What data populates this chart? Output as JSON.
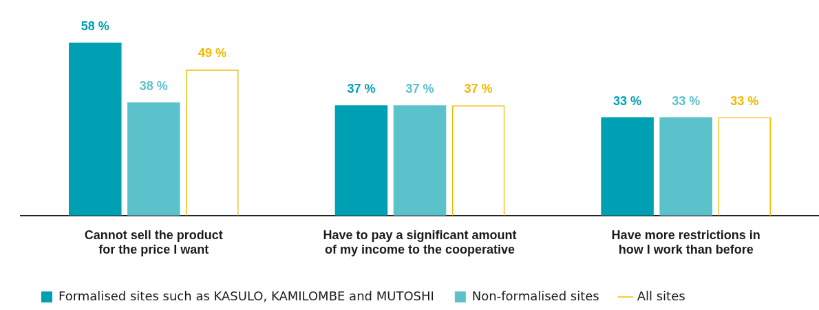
{
  "chart_data": {
    "type": "bar",
    "categories": [
      "Cannot sell the product for the price I want",
      "Have to pay a significant amount of my income to the cooperative",
      "Have more restrictions in how I work than before"
    ],
    "series": [
      {
        "name": "Formalised sites such as KASULO, KAMILOMBE and MUTOSHI",
        "color": "#00a0b4",
        "values": [
          58,
          37,
          33
        ],
        "value_labels": [
          "58 %",
          "37 %",
          "33 %"
        ]
      },
      {
        "name": "Non-formalised sites",
        "color": "#5bc2cc",
        "values": [
          38,
          37,
          33
        ],
        "value_labels": [
          "38 %",
          "37 %",
          "33 %"
        ]
      },
      {
        "name": "All sites",
        "color": "#f5b800",
        "values": [
          49,
          37,
          33
        ],
        "value_labels": [
          "49 %",
          "37 %",
          "33 %"
        ]
      }
    ],
    "grid": false,
    "legend": "bottom"
  }
}
